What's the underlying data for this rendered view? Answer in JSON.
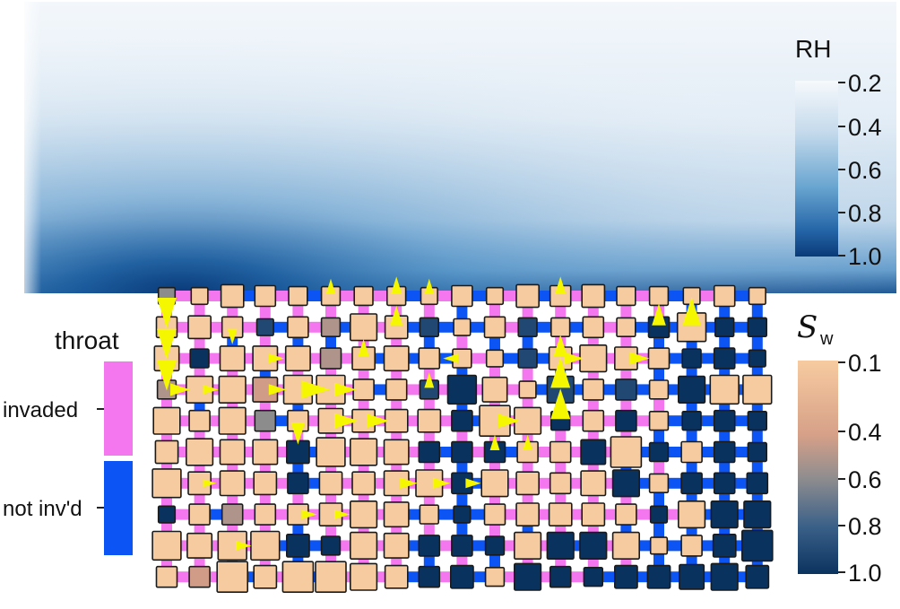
{
  "legends": {
    "rh": {
      "title": "RH",
      "ticks": [
        "0.2",
        "0.4",
        "0.6",
        "0.8",
        "1.0"
      ]
    },
    "sw": {
      "title_main": "S",
      "title_sub": "w",
      "ticks": [
        "0.1",
        "0.4",
        "0.6",
        "0.8",
        "1.0"
      ]
    }
  },
  "throat_legend": {
    "title": "throat",
    "items": [
      {
        "label": "invaded",
        "color": "#f577ef"
      },
      {
        "label": "not inv'd",
        "color": "#0c55f4"
      }
    ]
  },
  "colors": {
    "rh_scale": [
      "#f4f8fb",
      "#c9dcec",
      "#7fb2d6",
      "#2f79b6",
      "#0c3e7e"
    ],
    "sw_scale": [
      "#f7cba0",
      "#d09c88",
      "#8c8c8c",
      "#355d88",
      "#0a325e"
    ],
    "throat_invaded": "#f577ef",
    "throat_not_invaded": "#0c55f4",
    "flux_arrow": "#f4f700"
  },
  "pore_network": {
    "columns": 19,
    "rows": 10,
    "saturation_grid": [
      [
        0.6,
        0.1,
        0.1,
        0.1,
        0.1,
        0.1,
        0.1,
        0.1,
        0.1,
        0.1,
        0.1,
        0.1,
        0.1,
        0.1,
        0.1,
        0.1,
        0.1,
        0.1,
        0.1
      ],
      [
        0.1,
        0.1,
        0.1,
        0.9,
        0.1,
        0.5,
        0.1,
        0.1,
        0.9,
        0.1,
        0.1,
        0.9,
        0.1,
        0.1,
        0.1,
        1.0,
        0.1,
        1.0,
        1.0
      ],
      [
        0.1,
        1.0,
        0.1,
        0.1,
        0.1,
        0.5,
        0.1,
        0.1,
        0.1,
        0.1,
        0.1,
        0.9,
        0.1,
        0.1,
        0.1,
        0.1,
        1.0,
        1.0,
        1.0
      ],
      [
        0.5,
        0.1,
        0.1,
        0.4,
        0.1,
        0.1,
        0.1,
        0.1,
        0.9,
        1.0,
        0.1,
        0.1,
        0.9,
        0.1,
        0.9,
        0.1,
        1.0,
        0.1,
        0.1
      ],
      [
        0.1,
        0.1,
        0.1,
        0.6,
        0.1,
        0.1,
        0.1,
        0.1,
        0.1,
        1.0,
        0.1,
        0.1,
        1.0,
        0.1,
        1.0,
        0.1,
        1.0,
        1.0,
        1.0
      ],
      [
        0.1,
        0.1,
        0.1,
        0.1,
        1.0,
        0.1,
        0.1,
        0.1,
        1.0,
        1.0,
        1.0,
        0.1,
        0.1,
        1.0,
        0.1,
        1.0,
        0.1,
        1.0,
        1.0
      ],
      [
        0.1,
        0.1,
        0.1,
        0.1,
        1.0,
        0.1,
        0.1,
        0.1,
        0.1,
        1.0,
        0.1,
        0.1,
        0.1,
        0.1,
        1.0,
        0.1,
        1.0,
        1.0,
        1.0
      ],
      [
        1.0,
        0.1,
        0.5,
        0.1,
        0.1,
        0.1,
        0.1,
        0.1,
        0.1,
        1.0,
        0.1,
        0.1,
        0.1,
        0.1,
        0.1,
        1.0,
        0.1,
        1.0,
        1.0
      ],
      [
        0.1,
        0.1,
        0.1,
        0.1,
        1.0,
        1.0,
        0.1,
        0.1,
        1.0,
        1.0,
        1.0,
        0.1,
        1.0,
        1.0,
        0.1,
        0.1,
        0.1,
        1.0,
        1.0
      ],
      [
        0.1,
        0.4,
        0.1,
        0.1,
        0.1,
        0.1,
        0.1,
        0.1,
        1.0,
        1.0,
        0.1,
        1.0,
        1.0,
        1.0,
        1.0,
        1.0,
        1.0,
        1.0,
        1.0
      ]
    ],
    "size_grid": [
      [
        0.3,
        0.3,
        0.6,
        0.5,
        0.4,
        0.4,
        0.4,
        0.4,
        0.3,
        0.5,
        0.3,
        0.6,
        0.5,
        0.6,
        0.4,
        0.4,
        0.3,
        0.5,
        0.3
      ],
      [
        0.5,
        0.6,
        0.5,
        0.3,
        0.5,
        0.4,
        0.8,
        0.6,
        0.4,
        0.3,
        0.5,
        0.4,
        0.4,
        0.5,
        0.4,
        0.5,
        0.9,
        0.4,
        0.4
      ],
      [
        0.7,
        0.4,
        0.7,
        0.7,
        0.7,
        0.5,
        0.6,
        0.7,
        0.5,
        0.4,
        0.3,
        0.4,
        0.6,
        0.8,
        0.6,
        0.5,
        0.4,
        0.5,
        0.3
      ],
      [
        0.4,
        0.8,
        0.8,
        0.7,
        0.9,
        0.9,
        0.5,
        0.5,
        0.4,
        0.9,
        0.7,
        0.3,
        0.8,
        0.5,
        0.5,
        0.4,
        0.8,
        0.9,
        0.9
      ],
      [
        0.8,
        0.5,
        0.8,
        0.5,
        0.5,
        0.7,
        0.6,
        0.6,
        0.6,
        0.5,
        1.0,
        0.8,
        0.4,
        0.5,
        0.5,
        0.4,
        0.4,
        0.5,
        0.4
      ],
      [
        0.6,
        0.8,
        0.7,
        0.7,
        0.6,
        0.9,
        0.8,
        0.7,
        0.5,
        0.5,
        0.5,
        0.5,
        0.5,
        0.7,
        1.0,
        0.4,
        0.5,
        0.5,
        0.4
      ],
      [
        0.9,
        0.6,
        0.7,
        0.6,
        0.5,
        0.6,
        0.6,
        0.7,
        0.8,
        0.5,
        0.8,
        0.6,
        0.5,
        0.7,
        0.8,
        0.4,
        0.5,
        0.5,
        0.5
      ],
      [
        0.3,
        0.5,
        0.5,
        0.5,
        0.5,
        0.6,
        0.8,
        0.7,
        0.4,
        0.3,
        0.5,
        0.6,
        0.6,
        0.6,
        0.5,
        0.3,
        0.8,
        0.8,
        0.8
      ],
      [
        0.9,
        0.7,
        0.9,
        0.9,
        0.6,
        0.4,
        0.8,
        0.7,
        0.5,
        0.5,
        0.4,
        0.8,
        0.8,
        0.8,
        0.8,
        0.3,
        0.5,
        0.6,
        1.0
      ],
      [
        0.5,
        0.5,
        1.0,
        0.6,
        1.0,
        1.0,
        0.8,
        0.6,
        0.5,
        0.6,
        0.4,
        0.8,
        0.5,
        0.4,
        0.6,
        0.6,
        0.7,
        0.8,
        0.6
      ]
    ],
    "invaded_horizontal_throats": [
      [
        0,
        0
      ],
      [
        1,
        0
      ],
      [
        3,
        0
      ],
      [
        5,
        0
      ],
      [
        6,
        0
      ],
      [
        8,
        0
      ],
      [
        10,
        0
      ],
      [
        12,
        0
      ],
      [
        14,
        0
      ],
      [
        16,
        0
      ],
      [
        0,
        1
      ],
      [
        1,
        1
      ],
      [
        2,
        1
      ],
      [
        4,
        1
      ],
      [
        6,
        1
      ],
      [
        10,
        1
      ],
      [
        13,
        1
      ],
      [
        0,
        2
      ],
      [
        1,
        2
      ],
      [
        2,
        2
      ],
      [
        3,
        2
      ],
      [
        4,
        2
      ],
      [
        5,
        2
      ],
      [
        9,
        2
      ],
      [
        12,
        2
      ],
      [
        13,
        2
      ],
      [
        14,
        2
      ],
      [
        0,
        3
      ],
      [
        1,
        3
      ],
      [
        2,
        3
      ],
      [
        3,
        3
      ],
      [
        4,
        3
      ],
      [
        5,
        3
      ],
      [
        7,
        3
      ],
      [
        8,
        3
      ],
      [
        9,
        3
      ],
      [
        10,
        3
      ],
      [
        0,
        4
      ],
      [
        1,
        4
      ],
      [
        2,
        4
      ],
      [
        4,
        4
      ],
      [
        5,
        4
      ],
      [
        6,
        4
      ],
      [
        7,
        4
      ],
      [
        8,
        4
      ],
      [
        10,
        4
      ],
      [
        11,
        4
      ],
      [
        12,
        4
      ],
      [
        13,
        4
      ],
      [
        14,
        4
      ],
      [
        0,
        5
      ],
      [
        1,
        5
      ],
      [
        2,
        5
      ],
      [
        3,
        5
      ],
      [
        5,
        5
      ],
      [
        6,
        5
      ],
      [
        7,
        5
      ],
      [
        9,
        5
      ],
      [
        11,
        5
      ],
      [
        12,
        5
      ],
      [
        13,
        5
      ],
      [
        0,
        6
      ],
      [
        1,
        6
      ],
      [
        2,
        6
      ],
      [
        3,
        6
      ],
      [
        5,
        6
      ],
      [
        6,
        6
      ],
      [
        7,
        6
      ],
      [
        8,
        6
      ],
      [
        10,
        6
      ],
      [
        11,
        6
      ],
      [
        12,
        6
      ],
      [
        13,
        6
      ],
      [
        0,
        7
      ],
      [
        2,
        7
      ],
      [
        3,
        7
      ],
      [
        4,
        7
      ],
      [
        5,
        7
      ],
      [
        6,
        7
      ],
      [
        10,
        7
      ],
      [
        11,
        7
      ],
      [
        12,
        7
      ],
      [
        13,
        7
      ],
      [
        14,
        7
      ],
      [
        15,
        7
      ],
      [
        0,
        8
      ],
      [
        1,
        8
      ],
      [
        2,
        8
      ],
      [
        5,
        8
      ],
      [
        6,
        8
      ],
      [
        8,
        8
      ],
      [
        10,
        8
      ],
      [
        11,
        8
      ],
      [
        13,
        8
      ],
      [
        0,
        9
      ],
      [
        1,
        9
      ],
      [
        3,
        9
      ],
      [
        5,
        9
      ],
      [
        6,
        9
      ],
      [
        8,
        9
      ],
      [
        10,
        9
      ],
      [
        11,
        9
      ],
      [
        12,
        9
      ]
    ],
    "invaded_vertical_throats": [
      [
        0,
        0
      ],
      [
        1,
        0
      ],
      [
        2,
        0
      ],
      [
        3,
        0
      ],
      [
        4,
        0
      ],
      [
        5,
        0
      ],
      [
        6,
        0
      ],
      [
        7,
        0
      ],
      [
        8,
        0
      ],
      [
        10,
        0
      ],
      [
        11,
        0
      ],
      [
        12,
        0
      ],
      [
        13,
        0
      ],
      [
        14,
        0
      ],
      [
        15,
        0
      ],
      [
        0,
        1
      ],
      [
        1,
        1
      ],
      [
        3,
        1
      ],
      [
        6,
        1
      ],
      [
        7,
        1
      ],
      [
        9,
        1
      ],
      [
        12,
        1
      ],
      [
        13,
        1
      ],
      [
        14,
        1
      ],
      [
        0,
        2
      ],
      [
        1,
        2
      ],
      [
        2,
        2
      ],
      [
        4,
        2
      ],
      [
        5,
        2
      ],
      [
        6,
        2
      ],
      [
        7,
        2
      ],
      [
        8,
        2
      ],
      [
        10,
        2
      ],
      [
        11,
        2
      ],
      [
        13,
        2
      ],
      [
        14,
        2
      ],
      [
        0,
        3
      ],
      [
        2,
        3
      ],
      [
        3,
        3
      ],
      [
        5,
        3
      ],
      [
        6,
        3
      ],
      [
        7,
        3
      ],
      [
        8,
        3
      ],
      [
        10,
        3
      ],
      [
        11,
        3
      ],
      [
        12,
        3
      ],
      [
        13,
        3
      ],
      [
        14,
        3
      ],
      [
        15,
        3
      ],
      [
        0,
        4
      ],
      [
        1,
        4
      ],
      [
        2,
        4
      ],
      [
        3,
        4
      ],
      [
        4,
        4
      ],
      [
        5,
        4
      ],
      [
        6,
        4
      ],
      [
        7,
        4
      ],
      [
        8,
        4
      ],
      [
        9,
        4
      ],
      [
        10,
        4
      ],
      [
        11,
        4
      ],
      [
        12,
        4
      ],
      [
        13,
        4
      ],
      [
        14,
        4
      ],
      [
        0,
        5
      ],
      [
        1,
        5
      ],
      [
        2,
        5
      ],
      [
        3,
        5
      ],
      [
        5,
        5
      ],
      [
        6,
        5
      ],
      [
        7,
        5
      ],
      [
        8,
        5
      ],
      [
        10,
        5
      ],
      [
        11,
        5
      ],
      [
        12,
        5
      ],
      [
        13,
        5
      ],
      [
        15,
        5
      ],
      [
        0,
        6
      ],
      [
        1,
        6
      ],
      [
        2,
        6
      ],
      [
        3,
        6
      ],
      [
        4,
        6
      ],
      [
        5,
        6
      ],
      [
        6,
        6
      ],
      [
        7,
        6
      ],
      [
        8,
        6
      ],
      [
        10,
        6
      ],
      [
        11,
        6
      ],
      [
        12,
        6
      ],
      [
        13,
        6
      ],
      [
        14,
        6
      ],
      [
        0,
        7
      ],
      [
        1,
        7
      ],
      [
        2,
        7
      ],
      [
        3,
        7
      ],
      [
        5,
        7
      ],
      [
        6,
        7
      ],
      [
        7,
        7
      ],
      [
        8,
        7
      ],
      [
        10,
        7
      ],
      [
        12,
        7
      ],
      [
        13,
        7
      ],
      [
        0,
        8
      ],
      [
        1,
        8
      ],
      [
        2,
        8
      ],
      [
        3,
        8
      ],
      [
        5,
        8
      ],
      [
        6,
        8
      ],
      [
        7,
        8
      ],
      [
        9,
        8
      ],
      [
        11,
        8
      ],
      [
        12,
        8
      ],
      [
        13,
        8
      ],
      [
        14,
        8
      ]
    ],
    "vapor_flux_arrows": [
      {
        "col": 0,
        "row": 0,
        "dir": "down",
        "mag": 1.0
      },
      {
        "col": 0,
        "row": 1,
        "dir": "down",
        "mag": 1.0
      },
      {
        "col": 0,
        "row": 2,
        "dir": "down",
        "mag": 1.0
      },
      {
        "col": 0,
        "row": 3,
        "dir": "right",
        "mag": 0.5
      },
      {
        "col": 1,
        "row": 3,
        "dir": "right",
        "mag": 0.3
      },
      {
        "col": 3,
        "row": 3,
        "dir": "right",
        "mag": 0.4
      },
      {
        "col": 4,
        "row": 3,
        "dir": "right",
        "mag": 0.9
      },
      {
        "col": 5,
        "row": 3,
        "dir": "right",
        "mag": 0.6
      },
      {
        "col": 5,
        "row": 4,
        "dir": "right",
        "mag": 0.7
      },
      {
        "col": 6,
        "row": 4,
        "dir": "right",
        "mag": 0.6
      },
      {
        "col": 4,
        "row": 4,
        "dir": "down",
        "mag": 0.6
      },
      {
        "col": 6,
        "row": 2,
        "dir": "up",
        "mag": 0.4
      },
      {
        "col": 7,
        "row": 1,
        "dir": "up",
        "mag": 0.5
      },
      {
        "col": 7,
        "row": 0,
        "dir": "up",
        "mag": 0.4
      },
      {
        "col": 8,
        "row": 0,
        "dir": "up",
        "mag": 0.3
      },
      {
        "col": 9,
        "row": 2,
        "dir": "left",
        "mag": 0.3
      },
      {
        "col": 10,
        "row": 4,
        "dir": "right",
        "mag": 0.6
      },
      {
        "col": 12,
        "row": 4,
        "dir": "up",
        "mag": 1.0
      },
      {
        "col": 12,
        "row": 3,
        "dir": "up",
        "mag": 1.0
      },
      {
        "col": 12,
        "row": 2,
        "dir": "up",
        "mag": 0.6
      },
      {
        "col": 12,
        "row": 0,
        "dir": "up",
        "mag": 0.4
      },
      {
        "col": 12,
        "row": 2,
        "dir": "right",
        "mag": 0.5
      },
      {
        "col": 14,
        "row": 2,
        "dir": "right",
        "mag": 0.5
      },
      {
        "col": 15,
        "row": 1,
        "dir": "up",
        "mag": 0.6
      },
      {
        "col": 16,
        "row": 1,
        "dir": "up",
        "mag": 0.9
      },
      {
        "col": 7,
        "row": 6,
        "dir": "right",
        "mag": 0.4
      },
      {
        "col": 8,
        "row": 6,
        "dir": "right",
        "mag": 0.4
      },
      {
        "col": 9,
        "row": 6,
        "dir": "right",
        "mag": 0.3
      },
      {
        "col": 10,
        "row": 5,
        "dir": "up",
        "mag": 0.3
      },
      {
        "col": 4,
        "row": 7,
        "dir": "right",
        "mag": 0.3
      },
      {
        "col": 5,
        "row": 7,
        "dir": "right",
        "mag": 0.3
      },
      {
        "col": 2,
        "row": 8,
        "dir": "right",
        "mag": 0.3
      },
      {
        "col": 1,
        "row": 6,
        "dir": "right",
        "mag": 0.2
      },
      {
        "col": 2,
        "row": 1,
        "dir": "down",
        "mag": 0.3
      },
      {
        "col": 3,
        "row": 2,
        "dir": "right",
        "mag": 0.3
      },
      {
        "col": 5,
        "row": 0,
        "dir": "up",
        "mag": 0.3
      },
      {
        "col": 8,
        "row": 3,
        "dir": "up",
        "mag": 0.3
      },
      {
        "col": 11,
        "row": 5,
        "dir": "up",
        "mag": 0.3
      }
    ]
  }
}
